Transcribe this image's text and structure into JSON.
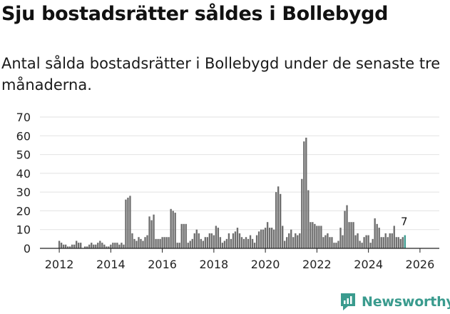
{
  "header": {
    "title": "Sju bostadsrätter såldes i Bollebygd",
    "subtitle": "Antal sålda bostadsrätter i Bollebygd under de senaste tre månaderna."
  },
  "brand": {
    "name": "Newsworthy",
    "icon": "newsworthy-logo-icon",
    "color": "#3a9b8e"
  },
  "colors": {
    "bar": "#6e6e6e",
    "highlight": "#3a9b8e",
    "grid": "#e2e2e2",
    "axis": "#222222"
  },
  "chart_data": {
    "type": "bar",
    "title": "Sju bostadsrätter såldes i Bollebygd",
    "xlabel": "",
    "ylabel": "",
    "x_start": 2012.0,
    "x_step": 0.08333,
    "xlim": [
      2011.25,
      2026.75
    ],
    "ylim": [
      0,
      70
    ],
    "y_ticks": [
      0,
      10,
      20,
      30,
      40,
      50,
      60,
      70
    ],
    "x_ticks": [
      2012,
      2014,
      2016,
      2018,
      2020,
      2022,
      2024,
      2026
    ],
    "grid": true,
    "values": [
      4,
      3,
      2,
      2,
      1,
      1,
      2,
      2,
      4,
      3,
      3,
      0,
      1,
      1,
      2,
      3,
      2,
      2,
      3,
      4,
      3,
      2,
      1,
      1,
      2,
      3,
      3,
      3,
      2,
      3,
      2,
      26,
      27,
      28,
      8,
      5,
      4,
      6,
      5,
      4,
      6,
      7,
      17,
      15,
      18,
      5,
      5,
      5,
      6,
      6,
      6,
      6,
      21,
      20,
      19,
      3,
      3,
      13,
      13,
      13,
      3,
      4,
      5,
      8,
      10,
      8,
      5,
      4,
      6,
      6,
      8,
      8,
      7,
      12,
      11,
      6,
      3,
      4,
      5,
      8,
      5,
      8,
      9,
      11,
      8,
      6,
      5,
      6,
      5,
      7,
      5,
      3,
      7,
      9,
      10,
      10,
      11,
      14,
      11,
      11,
      10,
      30,
      33,
      29,
      12,
      4,
      6,
      8,
      10,
      6,
      8,
      7,
      8,
      37,
      57,
      59,
      31,
      14,
      14,
      13,
      12,
      12,
      12,
      6,
      7,
      8,
      6,
      6,
      3,
      3,
      4,
      11,
      7,
      20,
      23,
      14,
      14,
      14,
      7,
      8,
      4,
      3,
      6,
      7,
      7,
      3,
      5,
      16,
      13,
      11,
      6,
      6,
      8,
      6,
      8,
      8,
      12,
      6,
      6,
      5,
      6,
      7
    ],
    "highlight_last": true,
    "annotation": {
      "label": "7",
      "value": 7
    }
  }
}
